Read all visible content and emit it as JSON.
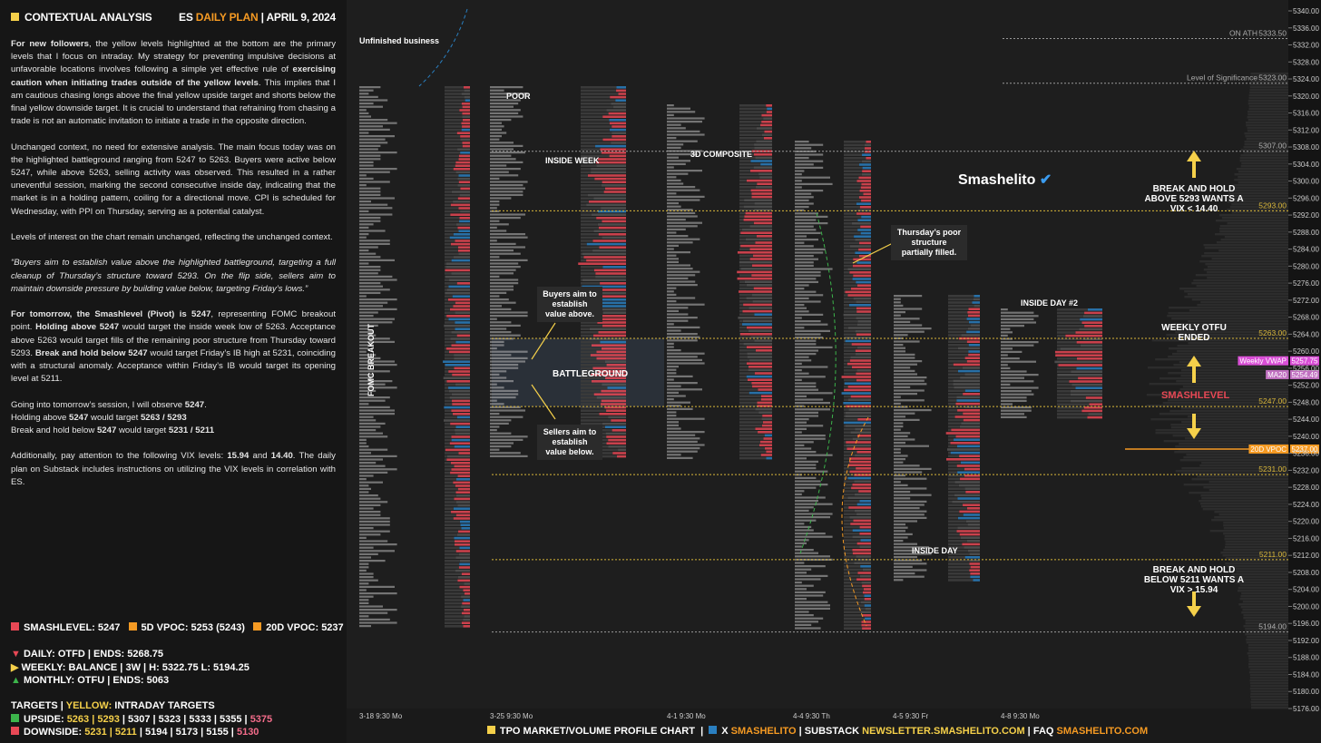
{
  "header": {
    "title": "CONTEXTUAL ANALYSIS",
    "symbol": "ES",
    "plan": "DAILY PLAN",
    "date": "APRIL 9, 2024"
  },
  "text": {
    "blocks": [
      [
        [
          {
            "text": "For new followers",
            "bold": true
          },
          ", the yellow levels highlighted at the bottom are the primary levels that I focus on intraday. My strategy for preventing impulsive decisions at unfavorable locations involves following a simple yet effective rule of ",
          {
            "text": "exercising caution when initiating trades outside of the yellow levels",
            "bold": true
          },
          ". This implies that I am cautious chasing longs above the final yellow upside target and shorts below the final yellow downside target. It is crucial to understand that refraining from chasing a trade is not an automatic invitation to initiate a trade in the opposite direction."
        ]
      ],
      [
        [
          "Unchanged context, no need for extensive analysis. The main focus today was on the highlighted battleground ranging from 5247 to 5263. Buyers were active below 5247, while above 5263, selling activity was observed. This resulted in a rather uneventful session, marking the second consecutive inside day, indicating that the market is in a holding pattern, coiling for a directional move. CPI is scheduled for Wednesday, with PPI on Thursday, serving as a potential catalyst."
        ]
      ],
      [
        [
          "Levels of interest on the chart remain unchanged, reflecting the unchanged context."
        ]
      ],
      [
        [
          {
            "text": "“Buyers aim to establish value above the highlighted battleground, targeting a full cleanup of Thursday’s structure toward 5293. On the flip side, sellers aim to maintain downside pressure by building value below, targeting Friday’s lows.”",
            "italic": true
          }
        ]
      ],
      [
        [
          {
            "text": "For tomorrow, the Smashlevel (Pivot) is 5247",
            "bold": true
          },
          ", representing FOMC breakout point. ",
          {
            "text": "Holding above 5247",
            "bold": true
          },
          " would target the inside week low of 5263. Acceptance above 5263 would target fills of the remaining poor structure from Thursday toward 5293. ",
          {
            "text": "Break and hold below 5247",
            "bold": true
          },
          " would target Friday’s IB high at 5231, coinciding with a structural anomaly. Acceptance within Friday’s IB would target its opening level at 5211."
        ]
      ],
      [
        [
          "Going into tomorrow’s session, I will observe ",
          {
            "text": "5247",
            "bold": true
          },
          "."
        ],
        [
          "Holding above ",
          {
            "text": "5247",
            "bold": true
          },
          " would target ",
          {
            "text": "5263 / 5293",
            "bold": true
          }
        ],
        [
          "Break and hold below ",
          {
            "text": "5247",
            "bold": true
          },
          " would target ",
          {
            "text": "5231 / 5211",
            "bold": true
          }
        ]
      ],
      [
        [
          "Additionally, pay attention to the following VIX levels: ",
          {
            "text": "15.94",
            "bold": true
          },
          " and ",
          {
            "text": "14.40",
            "bold": true
          },
          ". The daily plan on Substack includes instructions on utilizing the VIX levels in correlation with ES."
        ]
      ]
    ]
  },
  "legend": {
    "smashlevel": "SMASHLEVEL: 5247",
    "vpoc5": "5D VPOC: 5253 (5243)",
    "vpoc20": "20D VPOC: 5237",
    "daily": "DAILY: OTFD | ENDS: 5268.75",
    "weekly": "WEEKLY: BALANCE | 3W | H: 5322.75 L: 5194.25",
    "monthly": "MONTHLY: OTFU | ENDS: 5063",
    "targets": "TARGETS | ",
    "yellow": "YELLOW:",
    "intraday": " INTRADAY TARGETS",
    "upside": "UPSIDE:",
    "up_yellow": "5263 | 5293",
    "up_white": "| 5307 | 5323 | 5333 | 5355 |",
    "up_pink": "5375",
    "downside": "DOWNSIDE:",
    "down_yellow": "5231 | 5211",
    "down_white": "| 5194 | 5173 | 5155 |",
    "down_pink": "5130"
  },
  "footer": {
    "chart": "TPO MARKET/VOLUME PROFILE CHART",
    "x": "X",
    "x_handle": "SMASHELITO",
    "substack": "SUBSTACK",
    "substack_url": "NEWSLETTER.SMASHELITO.COM",
    "faq": "FAQ",
    "faq_url": "SMASHELITO.COM"
  },
  "annotations": {
    "unfinished": "Unfinished business",
    "poor": "POOR",
    "inside_week": "INSIDE WEEK",
    "composite": "3D COMPOSITE",
    "fomc": "FOMC BREAKOUT",
    "buyers": "Buyers aim to establish value above.",
    "battleground": "BATTLEGROUND",
    "sellers": "Sellers aim to establish value below.",
    "thursday": "Thursday’s poor structure partially filled.",
    "inside_day2": "INSIDE DAY #2",
    "inside_day": "INSIDE DAY",
    "brand": "Smashelito",
    "above": "BREAK AND HOLD ABOVE 5293 WANTS A VIX < 14.40",
    "otfu": "WEEKLY OTFU ENDED",
    "smashlevel": "SMASHLEVEL",
    "below": "BREAK AND HOLD BELOW 5211 WANTS A VIX > 15.94"
  },
  "sessions": [
    "3-18  9:30 Mo",
    "3-25  9:30 Mo",
    "4-1  9:30 Mo",
    "4-4  9:30 Th",
    "4-5  9:30 Fr",
    "4-8  9:30 Mo"
  ],
  "axis": {
    "ylim": [
      5176,
      5340
    ],
    "yticks": [
      {
        "value": 5340,
        "label": "5340.00"
      },
      {
        "value": 5336,
        "label": "5336.00"
      },
      {
        "value": 5332,
        "label": "5332.00"
      },
      {
        "value": 5328,
        "label": "5328.00"
      },
      {
        "value": 5324,
        "label": "5324.00"
      },
      {
        "value": 5320,
        "label": "5320.00"
      },
      {
        "value": 5316,
        "label": "5316.00"
      },
      {
        "value": 5312,
        "label": "5312.00"
      },
      {
        "value": 5308,
        "label": "5308.00"
      },
      {
        "value": 5304,
        "label": "5304.00"
      },
      {
        "value": 5300,
        "label": "5300.00"
      },
      {
        "value": 5296,
        "label": "5296.00"
      },
      {
        "value": 5292,
        "label": "5292.00"
      },
      {
        "value": 5288,
        "label": "5288.00"
      },
      {
        "value": 5284,
        "label": "5284.00"
      },
      {
        "value": 5280,
        "label": "5280.00"
      },
      {
        "value": 5276,
        "label": "5276.00"
      },
      {
        "value": 5272,
        "label": "5272.00"
      },
      {
        "value": 5268,
        "label": "5268.00"
      },
      {
        "value": 5264,
        "label": "5264.00"
      },
      {
        "value": 5260,
        "label": "5260.00"
      },
      {
        "value": 5256,
        "label": "5256.00"
      },
      {
        "value": 5252,
        "label": "5252.00"
      },
      {
        "value": 5248,
        "label": "5248.00"
      },
      {
        "value": 5244,
        "label": "5244.00"
      },
      {
        "value": 5240,
        "label": "5240.00"
      },
      {
        "value": 5236,
        "label": "5236.00"
      },
      {
        "value": 5232,
        "label": "5232.00"
      },
      {
        "value": 5228,
        "label": "5228.00"
      },
      {
        "value": 5224,
        "label": "5224.00"
      },
      {
        "value": 5220,
        "label": "5220.00"
      },
      {
        "value": 5216,
        "label": "5216.00"
      },
      {
        "value": 5212,
        "label": "5212.00"
      },
      {
        "value": 5208,
        "label": "5208.00"
      },
      {
        "value": 5204,
        "label": "5204.00"
      },
      {
        "value": 5200,
        "label": "5200.00"
      },
      {
        "value": 5196,
        "label": "5196.00"
      },
      {
        "value": 5192,
        "label": "5192.00"
      },
      {
        "value": 5188,
        "label": "5188.00"
      },
      {
        "value": 5184,
        "label": "5184.00"
      },
      {
        "value": 5180,
        "label": "5180.00"
      },
      {
        "value": 5176,
        "label": "5176.00"
      }
    ]
  },
  "levels": [
    {
      "value": 5333.5,
      "label": "5333.50",
      "note": "ON ATH"
    },
    {
      "value": 5323,
      "label": "5323.00",
      "note": "Level of Significance"
    },
    {
      "value": 5307,
      "label": "5307.00"
    },
    {
      "value": 5293,
      "label": "5293.00",
      "yellow": true
    },
    {
      "value": 5263,
      "label": "5263.00",
      "yellow": true
    },
    {
      "value": 5247,
      "label": "5247.00",
      "yellow": true
    },
    {
      "value": 5231,
      "label": "5231.00",
      "yellow": true
    },
    {
      "value": 5211,
      "label": "5211.00",
      "yellow": true
    },
    {
      "value": 5194,
      "label": "5194.00"
    }
  ],
  "tags": [
    {
      "value": 5257.75,
      "label": "5257.75",
      "name": "Weekly VWAP",
      "color": "#d94fd6"
    },
    {
      "value": 5254.49,
      "label": "5254.49",
      "name": "MA20",
      "color": "#c070c0"
    },
    {
      "value": 5237,
      "label": "5237.00",
      "name": "20D VPOC",
      "color": "#f59a23"
    }
  ]
}
